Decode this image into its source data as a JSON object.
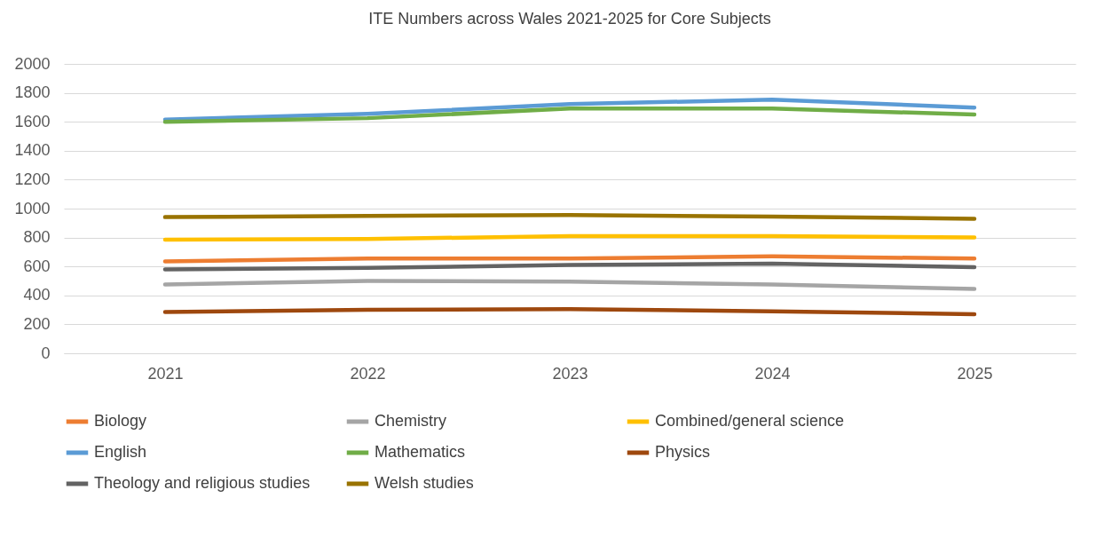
{
  "chart_data": {
    "type": "line",
    "title": "ITE Numbers  across Wales  2021-2025 for Core Subjects",
    "categories": [
      "2021",
      "2022",
      "2023",
      "2024",
      "2025"
    ],
    "ylim": [
      0,
      2000
    ],
    "yticks": [
      0,
      200,
      400,
      600,
      800,
      1000,
      1200,
      1400,
      1600,
      1800,
      2000
    ],
    "grid": "y",
    "legend": "bottom",
    "line_style": "solid",
    "marker": "none",
    "series": [
      {
        "name": "Biology",
        "color": "#ed7d31",
        "values": [
          635,
          655,
          655,
          670,
          655
        ]
      },
      {
        "name": "Chemistry",
        "color": "#a5a5a5",
        "values": [
          475,
          500,
          495,
          475,
          445
        ]
      },
      {
        "name": "Combined/general science",
        "color": "#ffc000",
        "values": [
          785,
          790,
          810,
          810,
          800
        ]
      },
      {
        "name": "English",
        "color": "#5b9bd5",
        "values": [
          1615,
          1655,
          1722,
          1753,
          1698
        ]
      },
      {
        "name": "Mathematics",
        "color": "#70ad47",
        "values": [
          1600,
          1625,
          1692,
          1692,
          1650
        ]
      },
      {
        "name": "Physics",
        "color": "#9e480e",
        "values": [
          285,
          300,
          305,
          290,
          270
        ]
      },
      {
        "name": "Theology and religious studies",
        "color": "#636363",
        "values": [
          580,
          590,
          610,
          620,
          595
        ]
      },
      {
        "name": "Welsh studies",
        "color": "#997300",
        "values": [
          941,
          950,
          955,
          945,
          930
        ]
      }
    ]
  }
}
